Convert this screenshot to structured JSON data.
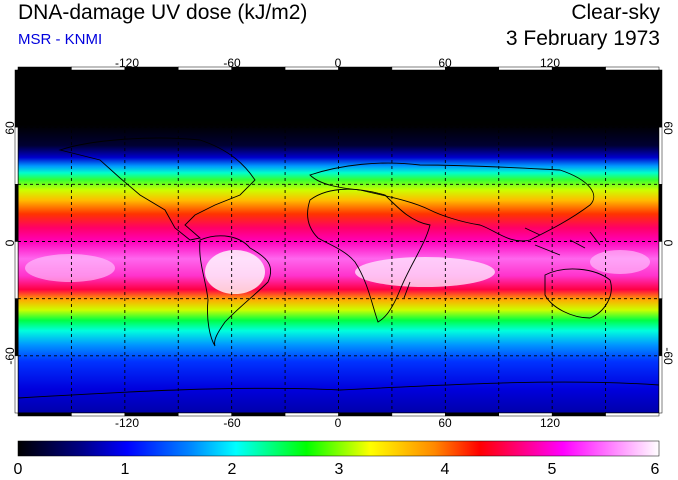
{
  "header": {
    "title": "DNA-damage UV dose (kJ/m2)",
    "source": "MSR - KNMI",
    "condition": "Clear-sky",
    "date": "3 February 1973"
  },
  "map": {
    "projection": "equirectangular",
    "lon_range": [
      -180,
      180
    ],
    "lat_range": [
      -90,
      90
    ],
    "lon_tick_labels": [
      "-120",
      "-60",
      "0",
      "60",
      "120"
    ],
    "lat_tick_labels": [
      "60",
      "0",
      "-60"
    ],
    "grid": "dashed, every 30 degrees"
  },
  "colorbar": {
    "tick_labels": [
      "0",
      "1",
      "2",
      "3",
      "4",
      "5",
      "6"
    ],
    "min": 0,
    "max": 6,
    "colors": [
      "#000000",
      "#0000cc",
      "#0088ff",
      "#00ffff",
      "#00ff00",
      "#ffff00",
      "#ff8800",
      "#ff0000",
      "#ff00ff",
      "#ffffff"
    ]
  }
}
